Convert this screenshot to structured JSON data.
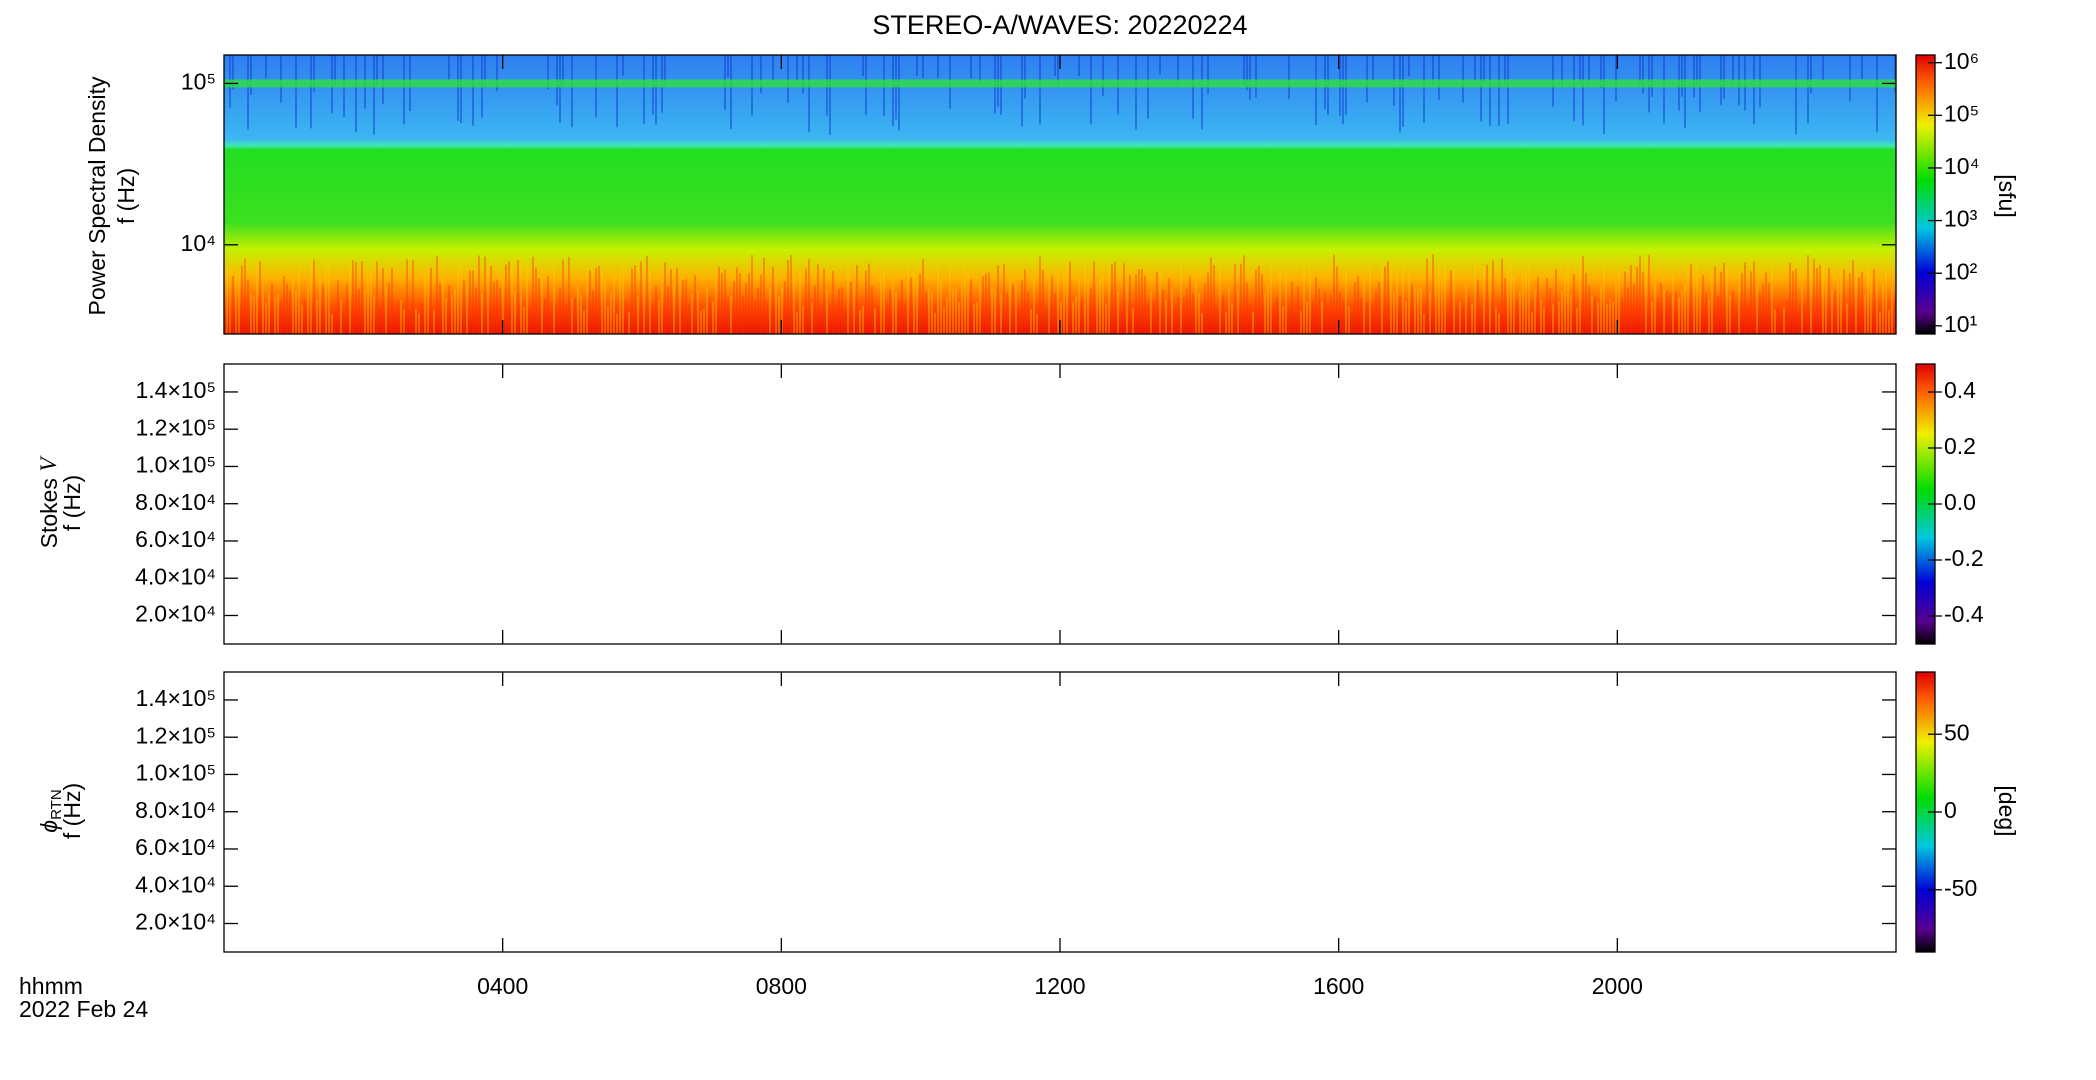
{
  "chart_data": [
    {
      "type": "spectrogram",
      "title": "STEREO-A/WAVES: 20220224",
      "ylabel": "Power Spectral Density",
      "ylabel2": "f (Hz)",
      "log_y": true,
      "ylim": [
        2800,
        150000
      ],
      "yticks": [
        {
          "value": 10000,
          "label": "10⁴"
        },
        {
          "value": 100000,
          "label": "10⁵"
        }
      ],
      "xlim": [
        0,
        24
      ],
      "colorbar": {
        "label": "[sfu]",
        "log": true,
        "lim": [
          7,
          1400000
        ],
        "ticks": [
          {
            "value": 10,
            "label": "10¹"
          },
          {
            "value": 100,
            "label": "10²"
          },
          {
            "value": 1000,
            "label": "10³"
          },
          {
            "value": 10000,
            "label": "10⁴"
          },
          {
            "value": 100000,
            "label": "10⁵"
          },
          {
            "value": 1000000,
            "label": "10⁶"
          }
        ]
      }
    },
    {
      "type": "spectrogram",
      "ylabel": "Stokes ",
      "ylabel_symbol": "V",
      "ylabel2": "f (Hz)",
      "log_y": false,
      "ylim": [
        4700,
        155000
      ],
      "yticks": [
        {
          "value": 20000,
          "label": "2.0×10⁴"
        },
        {
          "value": 40000,
          "label": "4.0×10⁴"
        },
        {
          "value": 60000,
          "label": "6.0×10⁴"
        },
        {
          "value": 80000,
          "label": "8.0×10⁴"
        },
        {
          "value": 100000,
          "label": "1.0×10⁵"
        },
        {
          "value": 120000,
          "label": "1.2×10⁵"
        },
        {
          "value": 140000,
          "label": "1.4×10⁵"
        }
      ],
      "xlim": [
        0,
        24
      ],
      "colorbar": {
        "log": false,
        "lim": [
          -0.5,
          0.5
        ],
        "ticks": [
          {
            "value": -0.4,
            "label": "-0.4"
          },
          {
            "value": -0.2,
            "label": "-0.2"
          },
          {
            "value": 0,
            "label": "0.0"
          },
          {
            "value": 0.2,
            "label": "0.2"
          },
          {
            "value": 0.4,
            "label": "0.4"
          }
        ]
      }
    },
    {
      "type": "spectrogram",
      "ylabel": "ϕ",
      "ylabel_sub": "RTN",
      "ylabel2": "f (Hz)",
      "log_y": false,
      "ylim": [
        4700,
        155000
      ],
      "yticks": [
        {
          "value": 20000,
          "label": "2.0×10⁴"
        },
        {
          "value": 40000,
          "label": "4.0×10⁴"
        },
        {
          "value": 60000,
          "label": "6.0×10⁴"
        },
        {
          "value": 80000,
          "label": "8.0×10⁴"
        },
        {
          "value": 100000,
          "label": "1.0×10⁵"
        },
        {
          "value": 120000,
          "label": "1.2×10⁵"
        },
        {
          "value": 140000,
          "label": "1.4×10⁵"
        }
      ],
      "xlim": [
        0,
        24
      ],
      "xlabel": "hhmm",
      "date": "2022 Feb 24",
      "xticks": [
        {
          "value": 4,
          "label": "0400"
        },
        {
          "value": 8,
          "label": "0800"
        },
        {
          "value": 12,
          "label": "1200"
        },
        {
          "value": 16,
          "label": "1600"
        },
        {
          "value": 20,
          "label": "2000"
        }
      ],
      "colorbar": {
        "label": "[deg]",
        "log": false,
        "lim": [
          -90,
          90
        ],
        "ticks": [
          -50,
          0,
          50
        ]
      }
    }
  ]
}
